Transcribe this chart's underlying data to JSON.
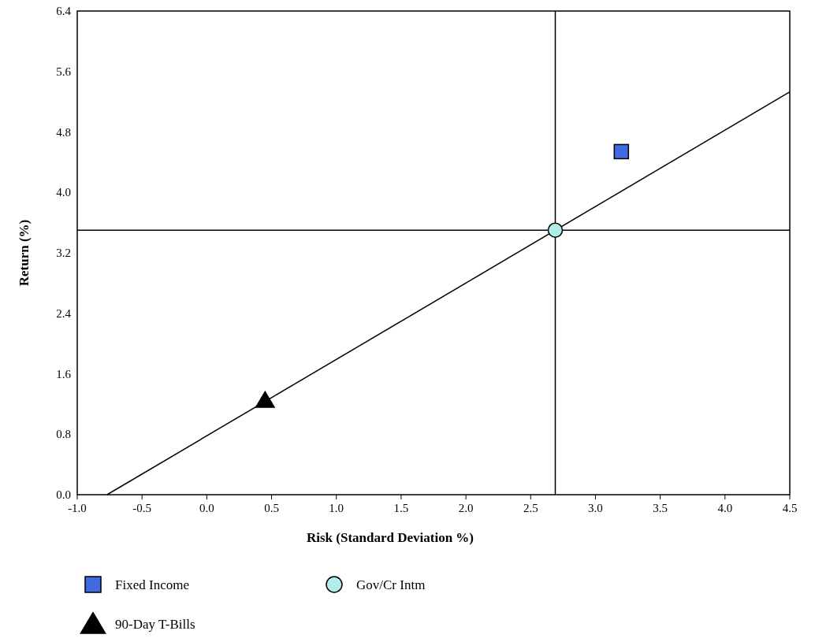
{
  "chart_data": {
    "type": "scatter",
    "xlabel": "Risk (Standard Deviation %)",
    "ylabel": "Return (%)",
    "xlim": [
      -1.0,
      4.5
    ],
    "ylim": [
      0.0,
      6.4
    ],
    "xticks": [
      {
        "value": -1.0,
        "label": "-1.0"
      },
      {
        "value": -0.5,
        "label": "-0.5"
      },
      {
        "value": 0,
        "label": "0.0"
      },
      {
        "value": 0.5,
        "label": "0.5"
      },
      {
        "value": 1,
        "label": "1.0"
      },
      {
        "value": 1.5,
        "label": "1.5"
      },
      {
        "value": 2,
        "label": "2.0"
      },
      {
        "value": 2.5,
        "label": "2.5"
      },
      {
        "value": 3,
        "label": "3.0"
      },
      {
        "value": 3.5,
        "label": "3.5"
      },
      {
        "value": 4,
        "label": "4.0"
      },
      {
        "value": 4.5,
        "label": "4.5"
      }
    ],
    "yticks": [
      {
        "value": 0,
        "label": "0.0"
      },
      {
        "value": 0.8,
        "label": "0.8"
      },
      {
        "value": 1.6,
        "label": "1.6"
      },
      {
        "value": 2.4,
        "label": "2.4"
      },
      {
        "value": 3.2,
        "label": "3.2"
      },
      {
        "value": 4,
        "label": "4.0"
      },
      {
        "value": 4.8,
        "label": "4.8"
      },
      {
        "value": 5.6,
        "label": "5.6"
      },
      {
        "value": 6.4,
        "label": "6.4"
      }
    ],
    "series": [
      {
        "type": "line",
        "color": "#000000",
        "x": [
          -0.77,
          4.5
        ],
        "values": [
          0,
          5.33
        ]
      },
      {
        "name": "Fixed Income",
        "color": "#4169e1",
        "x": [
          3.2
        ],
        "values": [
          4.54
        ],
        "marker": "square"
      },
      {
        "name": "Gov/Cr Intm",
        "color": "#b0ecea",
        "x": [
          2.69
        ],
        "values": [
          3.5
        ],
        "marker": "circle"
      },
      {
        "name": "90-Day T-Bills",
        "color": "#000000",
        "x": [
          0.45
        ],
        "values": [
          1.25
        ],
        "marker": "triangle"
      }
    ],
    "ref_lines": [
      {
        "axis": "x",
        "value": 2.69,
        "color": "#000000"
      },
      {
        "axis": "y",
        "value": 3.5,
        "color": "#000000"
      }
    ],
    "legend": "bottom"
  }
}
